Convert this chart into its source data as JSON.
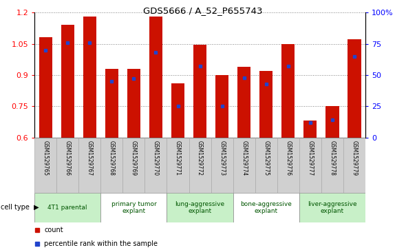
{
  "title": "GDS5666 / A_52_P655743",
  "samples": [
    "GSM1529765",
    "GSM1529766",
    "GSM1529767",
    "GSM1529768",
    "GSM1529769",
    "GSM1529770",
    "GSM1529771",
    "GSM1529772",
    "GSM1529773",
    "GSM1529774",
    "GSM1529775",
    "GSM1529776",
    "GSM1529777",
    "GSM1529778",
    "GSM1529779"
  ],
  "counts": [
    1.08,
    1.14,
    1.18,
    0.93,
    0.93,
    1.18,
    0.86,
    1.045,
    0.9,
    0.94,
    0.92,
    1.05,
    0.68,
    0.75,
    1.07
  ],
  "percentiles": [
    70,
    76,
    76,
    45,
    47,
    68,
    25,
    57,
    25,
    48,
    43,
    57,
    12,
    14,
    65
  ],
  "cell_types": [
    {
      "label": "4T1 parental",
      "start": 0,
      "end": 3,
      "color": "#c8f0c8"
    },
    {
      "label": "primary tumor\nexplant",
      "start": 3,
      "end": 6,
      "color": "#ffffff"
    },
    {
      "label": "lung-aggressive\nexplant",
      "start": 6,
      "end": 9,
      "color": "#c8f0c8"
    },
    {
      "label": "bone-aggressive\nexplant",
      "start": 9,
      "end": 12,
      "color": "#ffffff"
    },
    {
      "label": "liver-aggressive\nexplant",
      "start": 12,
      "end": 15,
      "color": "#c8f0c8"
    }
  ],
  "bar_color": "#cc1100",
  "dot_color": "#2244cc",
  "ylim_left": [
    0.6,
    1.2
  ],
  "ylim_right": [
    0,
    100
  ],
  "yticks_left": [
    0.6,
    0.75,
    0.9,
    1.05,
    1.2
  ],
  "yticks_right": [
    0,
    25,
    50,
    75,
    100
  ],
  "yticklabels_right": [
    "0",
    "25",
    "50",
    "75",
    "100%"
  ]
}
